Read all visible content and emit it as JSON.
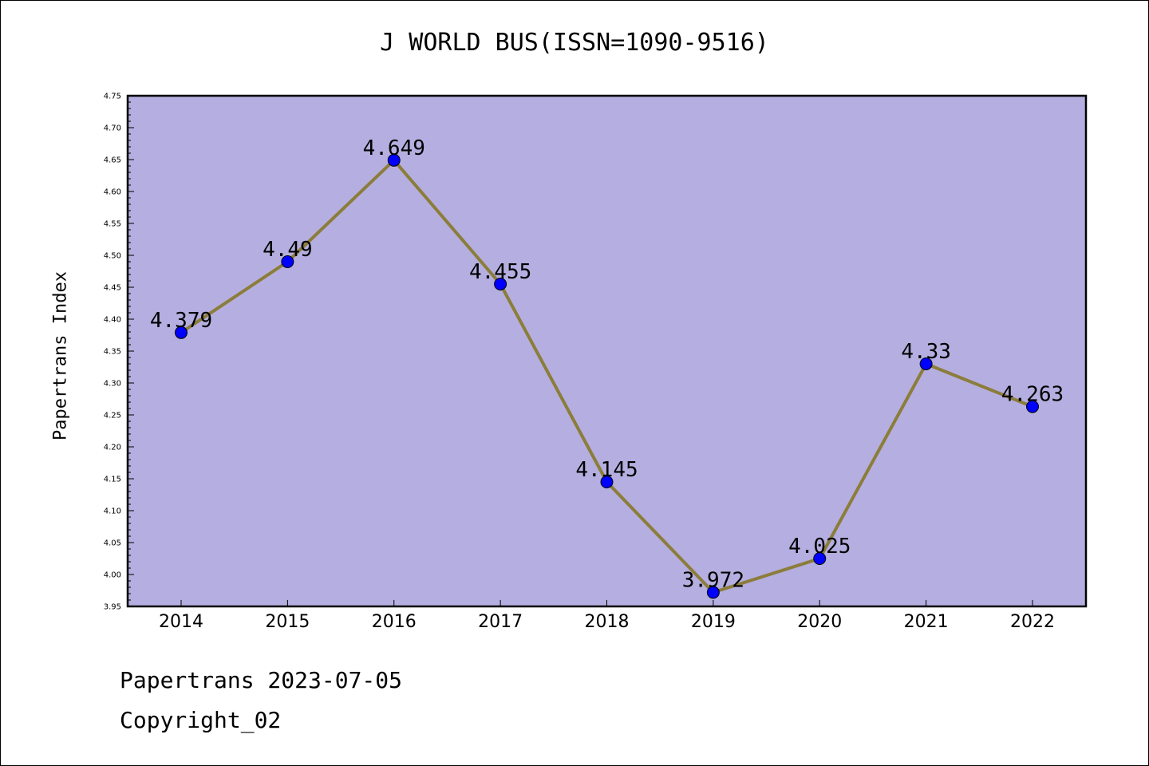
{
  "chart_data": {
    "type": "line",
    "title": "J WORLD BUS(ISSN=1090-9516)",
    "xlabel": "",
    "ylabel": "Papertrans Index",
    "categories": [
      "2014",
      "2015",
      "2016",
      "2017",
      "2018",
      "2019",
      "2020",
      "2021",
      "2022"
    ],
    "series": [
      {
        "values": [
          4.379,
          4.49,
          4.649,
          4.455,
          4.145,
          3.972,
          4.025,
          4.33,
          4.263
        ]
      }
    ],
    "data_labels": [
      "4.379",
      "4.49",
      "4.649",
      "4.455",
      "4.145",
      "3.972",
      "4.025",
      "4.33",
      "4.263"
    ],
    "ylim": [
      3.95,
      4.75
    ],
    "ytick_step": 0.05,
    "ytick_labels": [
      "3.95",
      "4.00",
      "4.05",
      "4.10",
      "4.15",
      "4.20",
      "4.25",
      "4.30",
      "4.35",
      "4.40",
      "4.45",
      "4.50",
      "4.55",
      "4.60",
      "4.65",
      "4.70",
      "4.75"
    ],
    "grid": false,
    "legend": "none",
    "colors": {
      "plot_background": "#b5aee0",
      "line": "#8b7d3a",
      "marker": "#0000ff",
      "axis": "#000000"
    }
  },
  "footer": {
    "date_line": "Papertrans 2023-07-05",
    "copyright_line": "Copyright_02"
  }
}
